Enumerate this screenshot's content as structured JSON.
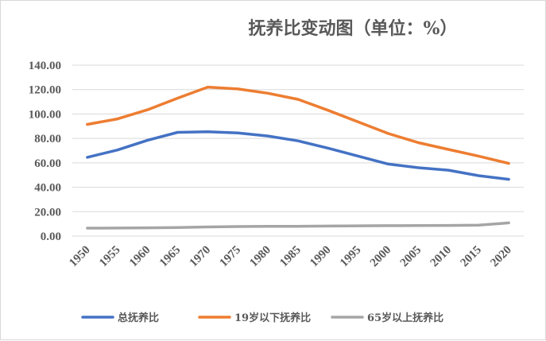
{
  "chart_data": {
    "type": "line",
    "title": "抚养比变动图（单位：%）",
    "x": [
      "1950",
      "1955",
      "1960",
      "1965",
      "1970",
      "1975",
      "1980",
      "1985",
      "1990",
      "1995",
      "2000",
      "2005",
      "2010",
      "2015",
      "2020"
    ],
    "ylim": [
      0,
      140
    ],
    "yticks": [
      "0.00",
      "20.00",
      "40.00",
      "60.00",
      "80.00",
      "100.00",
      "120.00",
      "140.00"
    ],
    "grid": "horizontal",
    "legend_position": "bottom",
    "series": [
      {
        "name": "总抚养比",
        "color": "#4472C4",
        "values": [
          64.5,
          70.5,
          78.5,
          85.0,
          85.5,
          84.5,
          82.0,
          78.0,
          72.0,
          65.5,
          59.0,
          56.0,
          54.0,
          49.5,
          46.5
        ]
      },
      {
        "name": "19岁以下抚养比",
        "color": "#ED7D31",
        "values": [
          91.5,
          96.0,
          103.5,
          113.0,
          122.0,
          120.5,
          117.0,
          112.0,
          103.0,
          93.5,
          84.0,
          76.5,
          71.0,
          65.5,
          59.5
        ]
      },
      {
        "name": "65岁以上抚养比",
        "color": "#A5A5A5",
        "values": [
          6.5,
          6.6,
          6.8,
          7.0,
          7.5,
          7.8,
          8.0,
          8.0,
          8.2,
          8.4,
          8.5,
          8.6,
          8.7,
          8.9,
          10.8
        ]
      }
    ]
  }
}
